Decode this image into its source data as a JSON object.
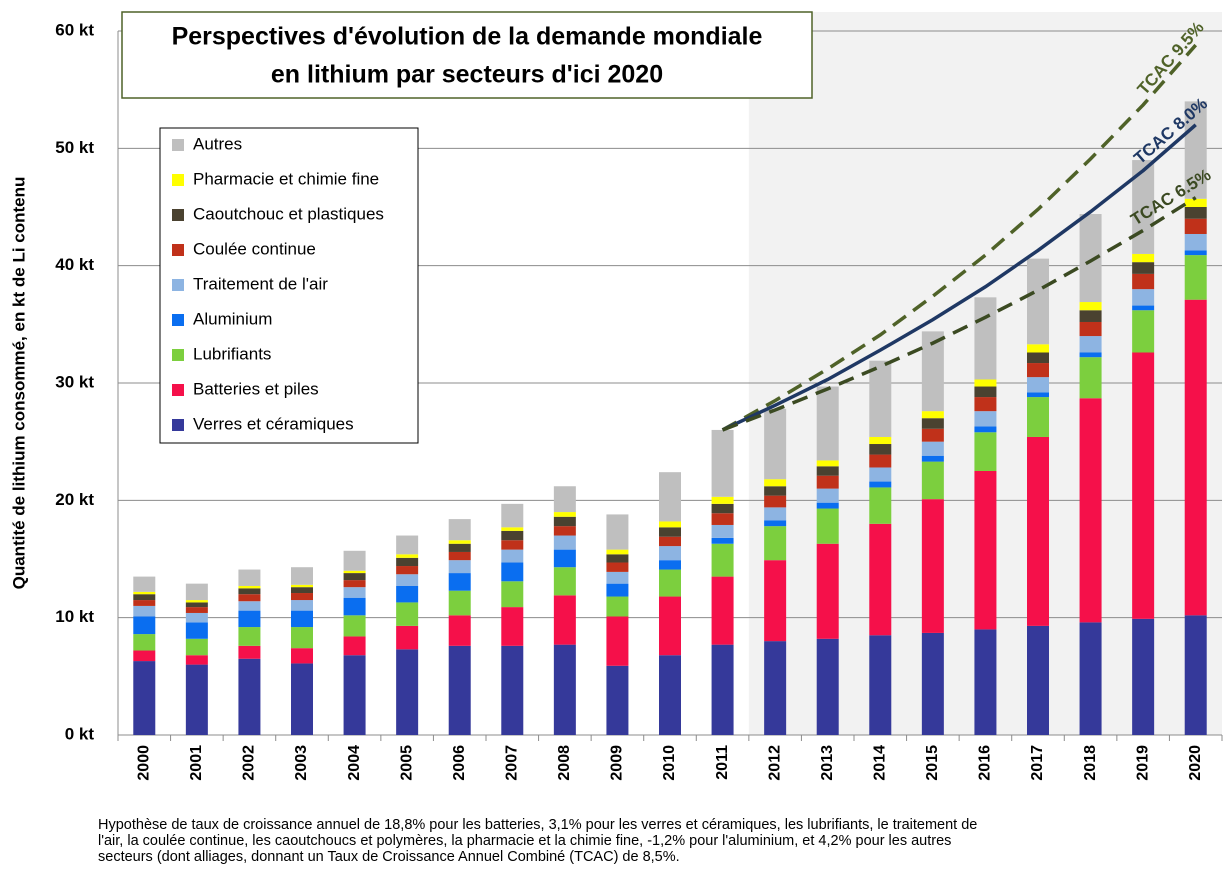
{
  "chart_data": {
    "type": "stacked_bar",
    "title": [
      "Perspectives d'évolution de la demande mondiale",
      "en lithium par secteurs d'ici 2020"
    ],
    "y_label": "Quantité de lithium consommé, en kt de Li contenu",
    "footnote": [
      "Hypothèse de taux de croissance annuel de 18,8% pour les batteries, 3,1% pour les verres et céramiques, les lubrifiants, le traitement de",
      "l'air, la coulée continue, les caoutchoucs et polymères, la pharmacie et la chimie fine, -1,2% pour l'aluminium, et 4,2% pour les autres",
      "secteurs (dont alliages, donnant un Taux de Croissance Annuel Combiné (TCAC) de 8,5%."
    ],
    "categories": [
      "2000",
      "2001",
      "2002",
      "2003",
      "2004",
      "2005",
      "2006",
      "2007",
      "2008",
      "2009",
      "2010",
      "2011",
      "2012",
      "2013",
      "2014",
      "2015",
      "2016",
      "2017",
      "2018",
      "2019",
      "2020"
    ],
    "ylim": [
      0,
      60
    ],
    "yticks": [
      {
        "value": 0,
        "label": "0 kt"
      },
      {
        "value": 10,
        "label": "10 kt"
      },
      {
        "value": 20,
        "label": "20 kt"
      },
      {
        "value": 30,
        "label": "30 kt"
      },
      {
        "value": 40,
        "label": "40 kt"
      },
      {
        "value": 50,
        "label": "50 kt"
      },
      {
        "value": 60,
        "label": "60 kt"
      }
    ],
    "grid": true,
    "legend": "upper left",
    "shaded_from": "2012",
    "series": [
      {
        "name": "Verres et céramiques",
        "color": "#35399a",
        "values": [
          6.3,
          6.0,
          6.5,
          6.1,
          6.8,
          7.3,
          7.6,
          7.6,
          7.7,
          5.9,
          6.8,
          7.7,
          8.0,
          8.2,
          8.5,
          8.7,
          9.0,
          9.3,
          9.6,
          9.9,
          10.2
        ]
      },
      {
        "name": "Batteries et piles",
        "color": "#f5104a",
        "values": [
          0.9,
          0.8,
          1.1,
          1.3,
          1.6,
          2.0,
          2.6,
          3.3,
          4.2,
          4.2,
          5.0,
          5.8,
          6.9,
          8.1,
          9.5,
          11.4,
          13.5,
          16.1,
          19.1,
          22.7,
          26.9
        ]
      },
      {
        "name": "Lubrifiants",
        "color": "#7ccf3e",
        "values": [
          1.4,
          1.4,
          1.6,
          1.8,
          1.8,
          2.0,
          2.1,
          2.2,
          2.4,
          1.7,
          2.3,
          2.8,
          2.9,
          3.0,
          3.1,
          3.2,
          3.3,
          3.4,
          3.5,
          3.6,
          3.8
        ]
      },
      {
        "name": "Aluminium",
        "color": "#0a6ef0",
        "values": [
          1.5,
          1.4,
          1.4,
          1.4,
          1.5,
          1.4,
          1.5,
          1.6,
          1.5,
          1.1,
          0.8,
          0.5,
          0.5,
          0.5,
          0.5,
          0.5,
          0.5,
          0.4,
          0.4,
          0.4,
          0.4
        ]
      },
      {
        "name": "Traitement de l'air",
        "color": "#8db4e2",
        "values": [
          0.9,
          0.8,
          0.8,
          0.9,
          0.9,
          1.0,
          1.1,
          1.1,
          1.2,
          1.0,
          1.2,
          1.1,
          1.1,
          1.2,
          1.2,
          1.2,
          1.3,
          1.3,
          1.4,
          1.4,
          1.4
        ]
      },
      {
        "name": "Coulée continue",
        "color": "#c0311a",
        "values": [
          0.5,
          0.5,
          0.6,
          0.6,
          0.6,
          0.7,
          0.7,
          0.8,
          0.8,
          0.8,
          0.8,
          1.0,
          1.0,
          1.1,
          1.1,
          1.1,
          1.2,
          1.2,
          1.2,
          1.3,
          1.3
        ]
      },
      {
        "name": "Caoutchouc et plastiques",
        "color": "#4a4230",
        "values": [
          0.5,
          0.4,
          0.5,
          0.5,
          0.6,
          0.7,
          0.7,
          0.8,
          0.8,
          0.7,
          0.8,
          0.8,
          0.8,
          0.8,
          0.9,
          0.9,
          0.9,
          0.9,
          1.0,
          1.0,
          1.0
        ]
      },
      {
        "name": "Pharmacie et chimie fine",
        "color": "#ffff00",
        "values": [
          0.2,
          0.2,
          0.2,
          0.2,
          0.2,
          0.3,
          0.3,
          0.3,
          0.4,
          0.4,
          0.5,
          0.6,
          0.6,
          0.5,
          0.6,
          0.6,
          0.6,
          0.7,
          0.7,
          0.7,
          0.7
        ]
      },
      {
        "name": "Autres",
        "color": "#bfbfbf",
        "values": [
          1.3,
          1.4,
          1.4,
          1.5,
          1.7,
          1.6,
          1.8,
          2.0,
          2.2,
          3.0,
          4.2,
          5.7,
          6.0,
          6.3,
          6.5,
          6.8,
          7.0,
          7.3,
          7.5,
          8.0,
          8.3
        ]
      }
    ],
    "lines": [
      {
        "name": "TCAC 9.5%",
        "color": "#4f6228",
        "dashed": true,
        "values": [
          null,
          null,
          null,
          null,
          null,
          null,
          null,
          null,
          null,
          null,
          null,
          26.0,
          28.5,
          31.2,
          34.1,
          37.4,
          40.9,
          44.8,
          49.1,
          53.7,
          58.8
        ]
      },
      {
        "name": "TCAC 8.0%",
        "color": "#1f3864",
        "dashed": false,
        "values": [
          null,
          null,
          null,
          null,
          null,
          null,
          null,
          null,
          null,
          null,
          null,
          26.0,
          28.1,
          30.3,
          32.8,
          35.4,
          38.2,
          41.3,
          44.6,
          48.1,
          52.0
        ]
      },
      {
        "name": "TCAC 6.5%",
        "color": "#3b4a22",
        "dashed": true,
        "values": [
          null,
          null,
          null,
          null,
          null,
          null,
          null,
          null,
          null,
          null,
          null,
          26.0,
          27.7,
          29.5,
          31.4,
          33.4,
          35.6,
          37.9,
          40.4,
          43.0,
          45.8
        ]
      }
    ]
  }
}
